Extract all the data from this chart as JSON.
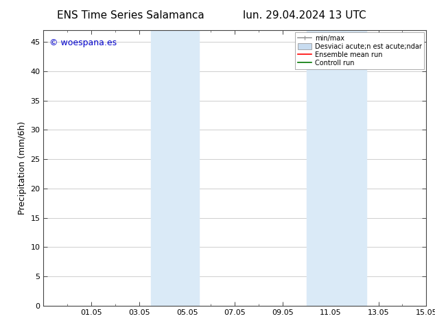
{
  "title_left": "ENS Time Series Salamanca",
  "title_right": "lun. 29.04.2024 13 UTC",
  "ylabel": "Precipitation (mm/6h)",
  "watermark": "© woespana.es",
  "watermark_color": "#0000cc",
  "ylim": [
    0,
    47
  ],
  "yticks": [
    0,
    5,
    10,
    15,
    20,
    25,
    30,
    35,
    40,
    45
  ],
  "xtick_labels": [
    "01.05",
    "03.05",
    "05.05",
    "07.05",
    "09.05",
    "11.05",
    "13.05",
    "15.05"
  ],
  "xtick_positions": [
    2,
    4,
    6,
    8,
    10,
    12,
    14,
    16
  ],
  "shaded_bands": [
    {
      "xmin": 4.5,
      "xmax": 6.5
    },
    {
      "xmin": 11.0,
      "xmax": 13.5
    }
  ],
  "shaded_color": "#daeaf7",
  "background_color": "#ffffff",
  "grid_color": "#bbbbbb",
  "xlim": [
    0,
    16
  ],
  "legend_min_max_color": "#999999",
  "legend_std_color": "#c8dcf0",
  "legend_mean_color": "#ff0000",
  "legend_ctrl_color": "#007700",
  "legend_label_1": "min/max",
  "legend_label_2": "Desviaci acute;n est acute;ndar",
  "legend_label_3": "Ensemble mean run",
  "legend_label_4": "Controll run",
  "title_fontsize": 11,
  "tick_fontsize": 8,
  "ylabel_fontsize": 9,
  "watermark_fontsize": 9
}
